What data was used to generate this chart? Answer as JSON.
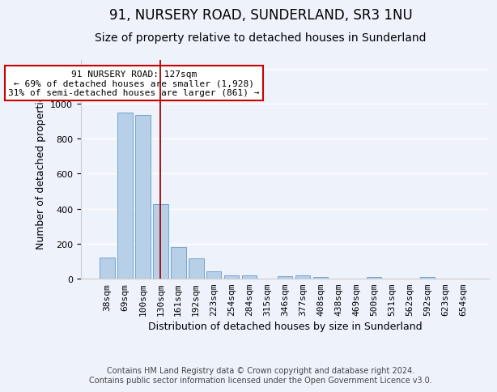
{
  "title": "91, NURSERY ROAD, SUNDERLAND, SR3 1NU",
  "subtitle": "Size of property relative to detached houses in Sunderland",
  "xlabel": "Distribution of detached houses by size in Sunderland",
  "ylabel": "Number of detached properties",
  "categories": [
    "38sqm",
    "69sqm",
    "100sqm",
    "130sqm",
    "161sqm",
    "192sqm",
    "223sqm",
    "254sqm",
    "284sqm",
    "315sqm",
    "346sqm",
    "377sqm",
    "408sqm",
    "438sqm",
    "469sqm",
    "500sqm",
    "531sqm",
    "562sqm",
    "592sqm",
    "623sqm",
    "654sqm"
  ],
  "values": [
    120,
    950,
    935,
    425,
    180,
    115,
    42,
    20,
    20,
    0,
    15,
    18,
    10,
    0,
    0,
    8,
    0,
    0,
    8,
    0,
    0
  ],
  "bar_color": "#b8cfe8",
  "bar_edge_color": "#6699cc",
  "property_bar_index": 3,
  "property_line_color": "#aa0000",
  "ylim": [
    0,
    1250
  ],
  "yticks": [
    0,
    200,
    400,
    600,
    800,
    1000,
    1200
  ],
  "annotation_line1": "91 NURSERY ROAD: 127sqm",
  "annotation_line2": "← 69% of detached houses are smaller (1,928)",
  "annotation_line3": "31% of semi-detached houses are larger (861) →",
  "annotation_box_color": "#ffffff",
  "annotation_box_edge": "#cc0000",
  "footer": "Contains HM Land Registry data © Crown copyright and database right 2024.\nContains public sector information licensed under the Open Government Licence v3.0.",
  "bg_color": "#eef2fb",
  "grid_color": "#ffffff",
  "title_fontsize": 12,
  "subtitle_fontsize": 10,
  "axis_label_fontsize": 9,
  "tick_fontsize": 8,
  "footer_fontsize": 7,
  "annotation_fontsize": 8
}
